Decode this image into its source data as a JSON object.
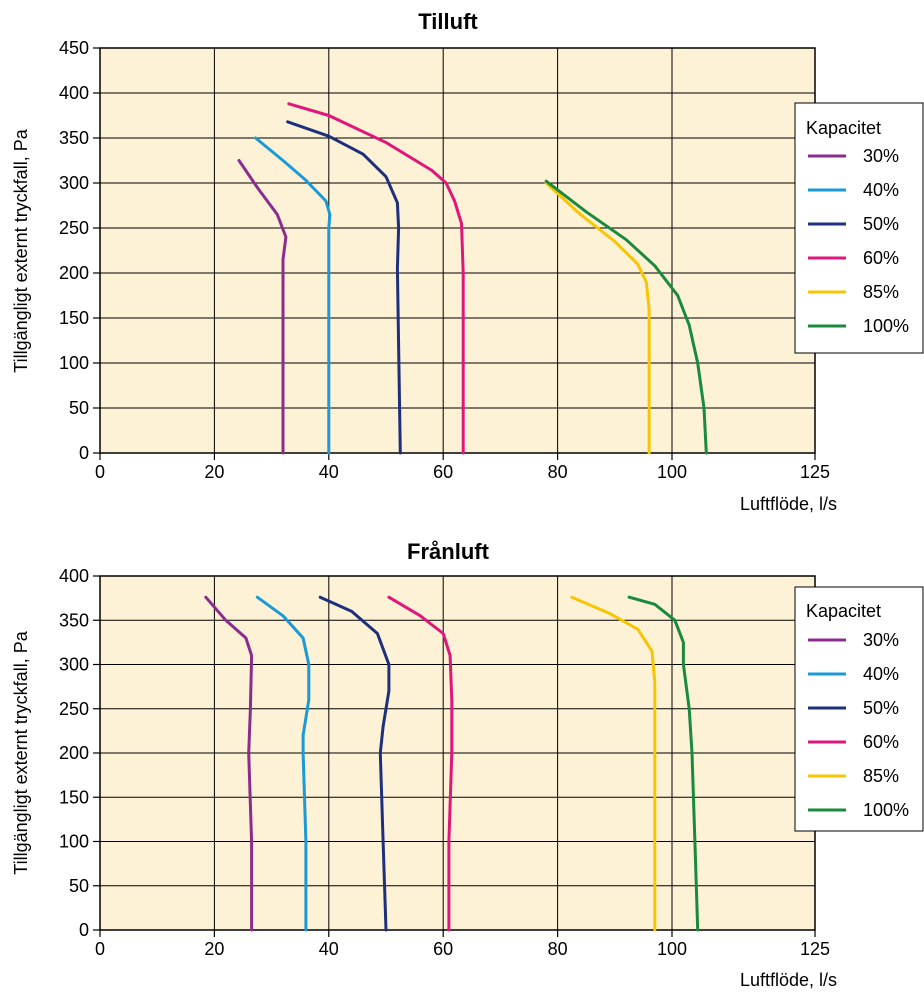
{
  "chart_data": [
    {
      "type": "line",
      "title": "Tilluft",
      "xlabel": "Luftflöde, l/s",
      "ylabel": "Tillgängligt externt tryckfall, Pa",
      "xlim": [
        0,
        125
      ],
      "ylim": [
        0,
        450
      ],
      "xticks": [
        0,
        20,
        40,
        60,
        80,
        100,
        125
      ],
      "yticks": [
        0,
        50,
        100,
        150,
        200,
        250,
        300,
        350,
        400,
        450
      ],
      "grid": true,
      "background_color": "#fdf1d6",
      "legend_title": "Kapacitet",
      "legend_position": "right",
      "series": [
        {
          "name": "30%",
          "color": "#8b2d8f",
          "points": [
            [
              24.3,
              325
            ],
            [
              27.5,
              295
            ],
            [
              31,
              265
            ],
            [
              32.5,
              240
            ],
            [
              32,
              215
            ],
            [
              32,
              200
            ],
            [
              32,
              0
            ]
          ]
        },
        {
          "name": "40%",
          "color": "#1a9ad6",
          "points": [
            [
              27.2,
              350
            ],
            [
              32,
              325
            ],
            [
              36,
              303
            ],
            [
              39.5,
              280
            ],
            [
              40.2,
              265
            ],
            [
              40,
              250
            ],
            [
              40,
              205
            ],
            [
              40,
              0
            ]
          ]
        },
        {
          "name": "50%",
          "color": "#1e2f7d",
          "points": [
            [
              32.8,
              368
            ],
            [
              40,
              352
            ],
            [
              46,
              332
            ],
            [
              50,
              307
            ],
            [
              52,
              278
            ],
            [
              52.2,
              250
            ],
            [
              52,
              205
            ],
            [
              52.5,
              0
            ]
          ]
        },
        {
          "name": "60%",
          "color": "#e0177a",
          "points": [
            [
              33,
              388
            ],
            [
              40,
              375
            ],
            [
              50,
              345
            ],
            [
              58,
              314
            ],
            [
              60.5,
              300
            ],
            [
              62,
              280
            ],
            [
              63.2,
              255
            ],
            [
              63.5,
              200
            ],
            [
              63.5,
              0
            ]
          ]
        },
        {
          "name": "85%",
          "color": "#f7c600",
          "points": [
            [
              78,
              300
            ],
            [
              84,
              265
            ],
            [
              90,
              235
            ],
            [
              94,
              210
            ],
            [
              95.5,
              190
            ],
            [
              96,
              160
            ],
            [
              96,
              100
            ],
            [
              96,
              0
            ]
          ]
        },
        {
          "name": "100%",
          "color": "#1a8a3c",
          "points": [
            [
              78,
              302
            ],
            [
              85,
              268
            ],
            [
              92,
              237
            ],
            [
              97,
              208
            ],
            [
              101,
              175
            ],
            [
              103,
              142
            ],
            [
              104.5,
              100
            ],
            [
              105.6,
              50
            ],
            [
              106,
              0
            ]
          ]
        }
      ]
    },
    {
      "type": "line",
      "title": "Frånluft",
      "xlabel": "Luftflöde, l/s",
      "ylabel": "Tillgängligt externt tryckfall, Pa",
      "xlim": [
        0,
        125
      ],
      "ylim": [
        0,
        400
      ],
      "xticks": [
        0,
        20,
        40,
        60,
        80,
        100,
        125
      ],
      "yticks": [
        0,
        50,
        100,
        150,
        200,
        250,
        300,
        350,
        400
      ],
      "grid": true,
      "background_color": "#fdf1d6",
      "legend_title": "Kapacitet",
      "legend_position": "right",
      "series": [
        {
          "name": "30%",
          "color": "#8b2d8f",
          "points": [
            [
              18.5,
              376
            ],
            [
              22,
              350
            ],
            [
              25.5,
              330
            ],
            [
              26.5,
              310
            ],
            [
              26.3,
              250
            ],
            [
              26,
              200
            ],
            [
              26.5,
              100
            ],
            [
              26.5,
              0
            ]
          ]
        },
        {
          "name": "40%",
          "color": "#1a9ad6",
          "points": [
            [
              27.5,
              376
            ],
            [
              32,
              355
            ],
            [
              35.5,
              330
            ],
            [
              36.5,
              300
            ],
            [
              36.5,
              260
            ],
            [
              35.5,
              220
            ],
            [
              35.5,
              200
            ],
            [
              36,
              100
            ],
            [
              36,
              0
            ]
          ]
        },
        {
          "name": "50%",
          "color": "#1e2f7d",
          "points": [
            [
              38.5,
              376
            ],
            [
              44,
              360
            ],
            [
              48.5,
              335
            ],
            [
              50.5,
              300
            ],
            [
              50.5,
              270
            ],
            [
              49.5,
              230
            ],
            [
              49,
              200
            ],
            [
              49.5,
              100
            ],
            [
              50,
              0
            ]
          ]
        },
        {
          "name": "60%",
          "color": "#e0177a",
          "points": [
            [
              50.5,
              376
            ],
            [
              56,
              355
            ],
            [
              60,
              335
            ],
            [
              61.2,
              310
            ],
            [
              61.5,
              260
            ],
            [
              61.5,
              200
            ],
            [
              61,
              100
            ],
            [
              61,
              0
            ]
          ]
        },
        {
          "name": "85%",
          "color": "#f7c600",
          "points": [
            [
              82.5,
              376
            ],
            [
              89,
              358
            ],
            [
              94,
              340
            ],
            [
              96.5,
              315
            ],
            [
              97,
              280
            ],
            [
              97,
              200
            ],
            [
              97,
              100
            ],
            [
              97,
              0
            ]
          ]
        },
        {
          "name": "100%",
          "color": "#1a8a3c",
          "points": [
            [
              92.5,
              376
            ],
            [
              97,
              368
            ],
            [
              100.5,
              350
            ],
            [
              102,
              325
            ],
            [
              102,
              300
            ],
            [
              103,
              250
            ],
            [
              103.5,
              200
            ],
            [
              104,
              100
            ],
            [
              104.5,
              0
            ]
          ]
        }
      ]
    }
  ]
}
